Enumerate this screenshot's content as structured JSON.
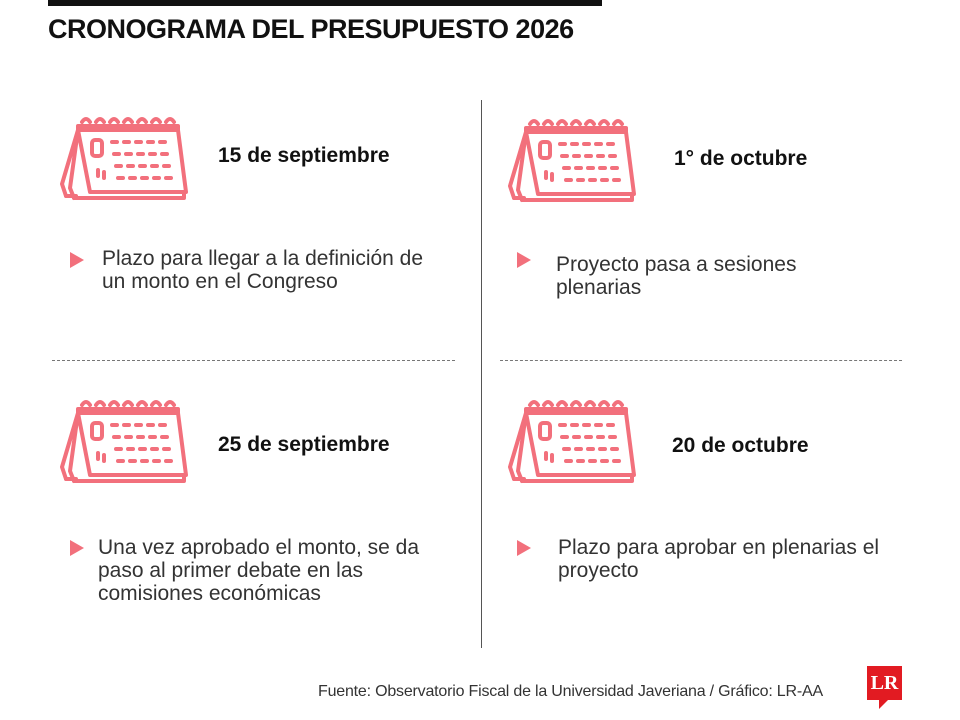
{
  "title": "CRONOGRAMA DEL PRESUPUESTO 2026",
  "accent_color": "#f2707c",
  "events": [
    {
      "date": "15 de septiembre",
      "description": "Plazo para llegar a la definición de un monto en el Congreso",
      "icon": "calendar-icon"
    },
    {
      "date": "1° de octubre",
      "description": "Proyecto pasa a sesiones plenarias",
      "icon": "calendar-icon"
    },
    {
      "date": "25 de septiembre",
      "description": "Una vez aprobado el monto, se da paso al primer debate en las comisiones económicas",
      "icon": "calendar-icon"
    },
    {
      "date": "20 de octubre",
      "description": "Plazo para aprobar en plenarias el proyecto",
      "icon": "calendar-icon"
    }
  ],
  "footer": {
    "source": "Fuente: Observatorio Fiscal de la Universidad Javeriana / Gráfico: LR-AA",
    "logo_text": "LR"
  }
}
